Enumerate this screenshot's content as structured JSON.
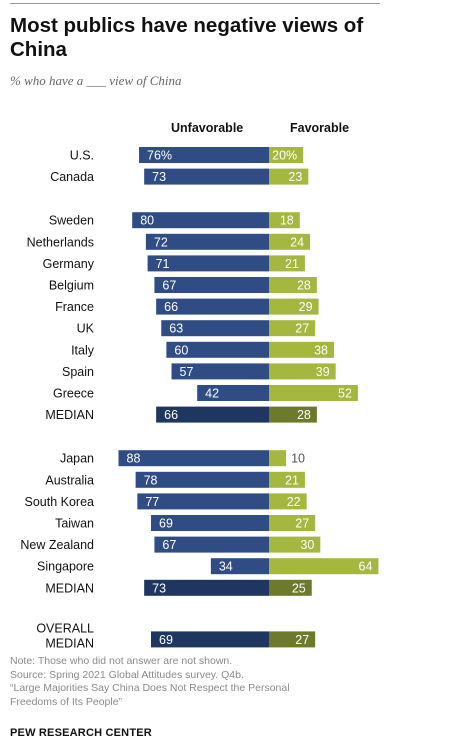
{
  "header": {
    "title": "Most publics have negative views of China",
    "subtitle": "% who have a ___ view of China"
  },
  "colors": {
    "unfavorable": "#2f4d84",
    "unfavorable_median": "#1f3661",
    "favorable": "#a5b73f",
    "favorable_median": "#6d7a2c"
  },
  "chart_data": {
    "type": "bar",
    "orientation": "horizontal",
    "diverging": true,
    "column_headers": [
      "Unfavorable",
      "Favorable"
    ],
    "series": [
      {
        "name": "Unfavorable"
      },
      {
        "name": "Favorable"
      }
    ],
    "rows": [
      {
        "label": "U.S.",
        "unfavorable": 76,
        "favorable": 20,
        "unf_label": "76%",
        "fav_label": "20%",
        "group": 1
      },
      {
        "label": "Canada",
        "unfavorable": 73,
        "favorable": 23,
        "unf_label": "73",
        "fav_label": "23",
        "group": 1
      },
      {
        "label": "Sweden",
        "unfavorable": 80,
        "favorable": 18,
        "unf_label": "80",
        "fav_label": "18",
        "group": 2
      },
      {
        "label": "Netherlands",
        "unfavorable": 72,
        "favorable": 24,
        "unf_label": "72",
        "fav_label": "24",
        "group": 2
      },
      {
        "label": "Germany",
        "unfavorable": 71,
        "favorable": 21,
        "unf_label": "71",
        "fav_label": "21",
        "group": 2
      },
      {
        "label": "Belgium",
        "unfavorable": 67,
        "favorable": 28,
        "unf_label": "67",
        "fav_label": "28",
        "group": 2
      },
      {
        "label": "France",
        "unfavorable": 66,
        "favorable": 29,
        "unf_label": "66",
        "fav_label": "29",
        "group": 2
      },
      {
        "label": "UK",
        "unfavorable": 63,
        "favorable": 27,
        "unf_label": "63",
        "fav_label": "27",
        "group": 2
      },
      {
        "label": "Italy",
        "unfavorable": 60,
        "favorable": 38,
        "unf_label": "60",
        "fav_label": "38",
        "group": 2
      },
      {
        "label": "Spain",
        "unfavorable": 57,
        "favorable": 39,
        "unf_label": "57",
        "fav_label": "39",
        "group": 2
      },
      {
        "label": "Greece",
        "unfavorable": 42,
        "favorable": 52,
        "unf_label": "42",
        "fav_label": "52",
        "group": 2
      },
      {
        "label": "MEDIAN",
        "unfavorable": 66,
        "favorable": 28,
        "unf_label": "66",
        "fav_label": "28",
        "group": 2,
        "median": true
      },
      {
        "label": "Japan",
        "unfavorable": 88,
        "favorable": 10,
        "unf_label": "88",
        "fav_label": "10",
        "group": 3
      },
      {
        "label": "Australia",
        "unfavorable": 78,
        "favorable": 21,
        "unf_label": "78",
        "fav_label": "21",
        "group": 3
      },
      {
        "label": "South Korea",
        "unfavorable": 77,
        "favorable": 22,
        "unf_label": "77",
        "fav_label": "22",
        "group": 3
      },
      {
        "label": "Taiwan",
        "unfavorable": 69,
        "favorable": 27,
        "unf_label": "69",
        "fav_label": "27",
        "group": 3
      },
      {
        "label": "New Zealand",
        "unfavorable": 67,
        "favorable": 30,
        "unf_label": "67",
        "fav_label": "30",
        "group": 3
      },
      {
        "label": "Singapore",
        "unfavorable": 34,
        "favorable": 64,
        "unf_label": "34",
        "fav_label": "64",
        "group": 3
      },
      {
        "label": "MEDIAN",
        "unfavorable": 73,
        "favorable": 25,
        "unf_label": "73",
        "fav_label": "25",
        "group": 3,
        "median": true
      },
      {
        "label": "OVERALL MEDIAN",
        "label_lines": [
          "OVERALL",
          "MEDIAN"
        ],
        "unfavorable": 69,
        "favorable": 27,
        "unf_label": "69",
        "fav_label": "27",
        "group": 4,
        "median": true
      }
    ]
  },
  "footer": {
    "note": "Note: Those who did not answer are not shown.",
    "source": "Source: Spring 2021 Global Attitudes survey. Q4b.",
    "report": "“Large Majorities Say China Does Not Respect the Personal Freedoms of Its People”",
    "brand": "PEW RESEARCH CENTER"
  }
}
